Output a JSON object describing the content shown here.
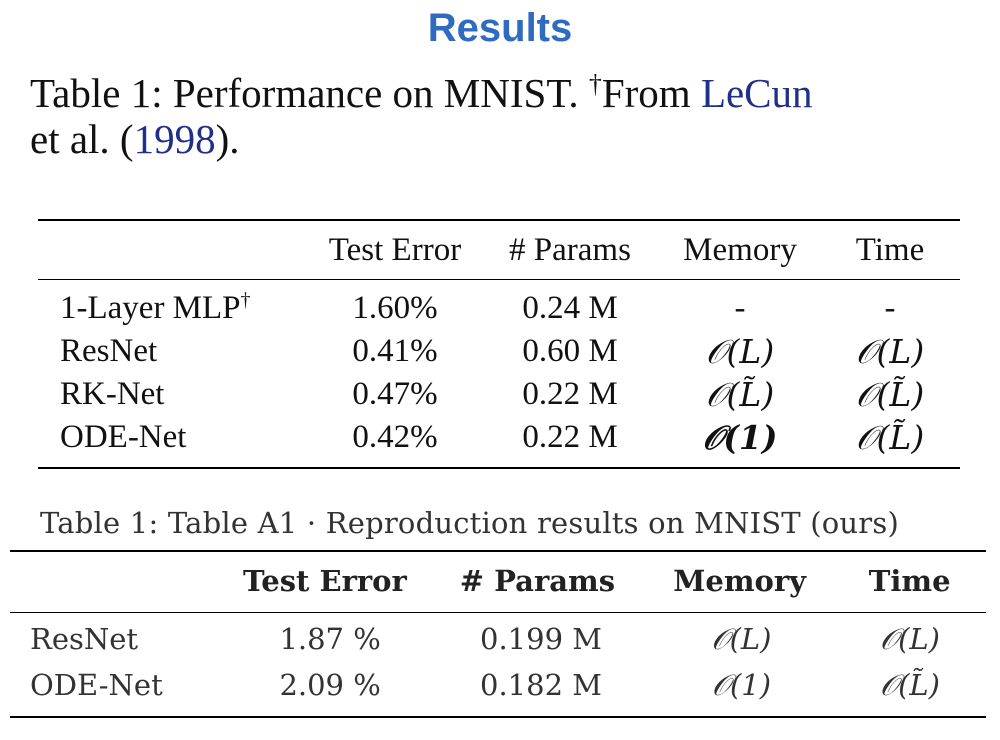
{
  "slide_title": "Results",
  "caption1": {
    "prefix": "Table 1: Performance on MNIST. ",
    "dagger": "†",
    "from": "From ",
    "author": "LeCun",
    "mid": "et al. (",
    "year": "1998",
    "suffix": ")."
  },
  "table1": {
    "headers": [
      "",
      "Test Error",
      "# Params",
      "Memory",
      "Time"
    ],
    "rows": [
      {
        "model": "1-Layer MLP",
        "dagger": "†",
        "error": "1.60%",
        "params": "0.24 M",
        "memory": "-",
        "time": "-"
      },
      {
        "model": "ResNet",
        "error": "0.41%",
        "params": "0.60 M",
        "memory": "𝒪(L)",
        "time": "𝒪(L)"
      },
      {
        "model": "RK-Net",
        "error": "0.47%",
        "params": "0.22 M",
        "memory": "𝒪(L̃)",
        "time": "𝒪(L̃)"
      },
      {
        "model": "ODE-Net",
        "error": "0.42%",
        "params": "0.22 M",
        "memory": "𝒪(1)",
        "time": "𝒪(L̃)"
      }
    ]
  },
  "caption2": "Table 1: Table A1 · Reproduction results on MNIST (ours)",
  "table2": {
    "headers": [
      "",
      "Test Error",
      "# Params",
      "Memory",
      "Time"
    ],
    "rows": [
      {
        "model": "ResNet",
        "error": "1.87 %",
        "params": "0.199 M",
        "memory": "𝒪(L)",
        "time": "𝒪(L)"
      },
      {
        "model": "ODE-Net",
        "error": "2.09 %",
        "params": "0.182 M",
        "memory": "𝒪(1)",
        "time": "𝒪(L̃)"
      }
    ]
  }
}
